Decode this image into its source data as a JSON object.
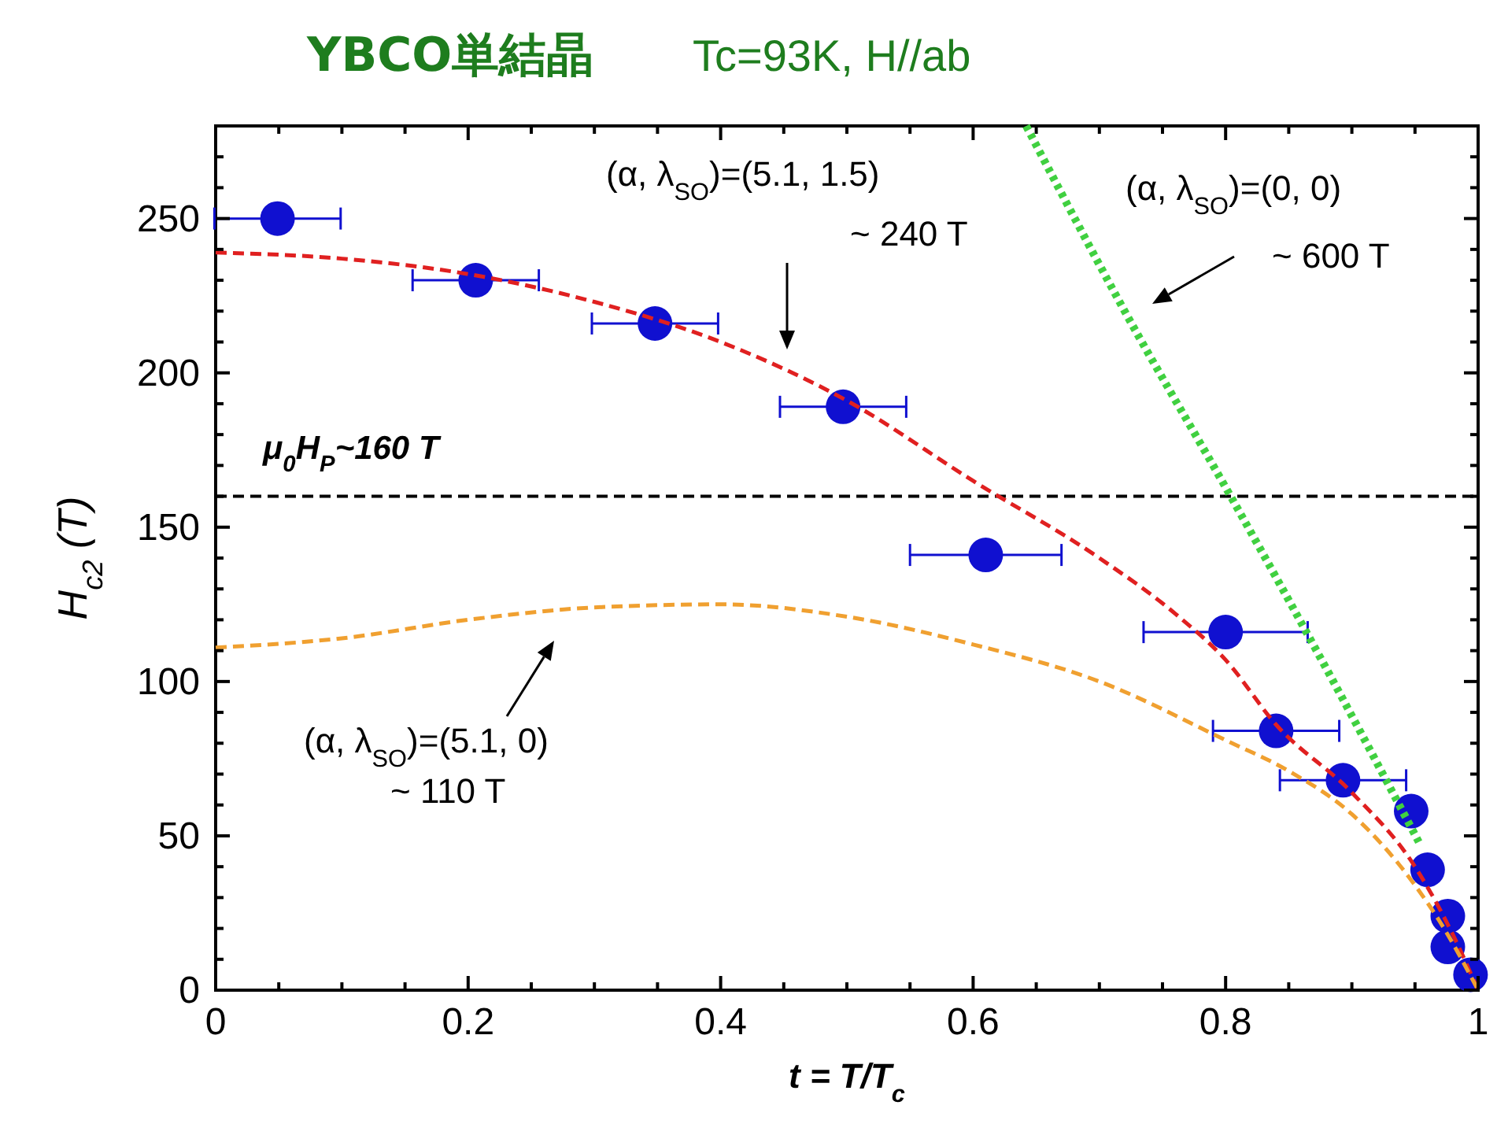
{
  "chart_data": {
    "type": "scatter",
    "title": "YBCO単結晶",
    "subtitle": "Tc=93K, H//ab",
    "xlabel": "t = T/T$_{c}$",
    "ylabel": "H$_{c2}$ (T)",
    "xlim": [
      0,
      1
    ],
    "ylim": [
      0,
      280
    ],
    "xticks": [
      0,
      {
        "value": 0.05,
        "label": null
      },
      {
        "value": 0.1,
        "label": null
      },
      {
        "value": 0.15,
        "label": null
      },
      0.2,
      {
        "value": 0.25,
        "label": null
      },
      {
        "value": 0.3,
        "label": null
      },
      {
        "value": 0.35,
        "label": null
      },
      0.4,
      {
        "value": 0.45,
        "label": null
      },
      {
        "value": 0.5,
        "label": null
      },
      {
        "value": 0.55,
        "label": null
      },
      0.6,
      {
        "value": 0.65,
        "label": null
      },
      {
        "value": 0.7,
        "label": null
      },
      {
        "value": 0.75,
        "label": null
      },
      0.8,
      {
        "value": 0.85,
        "label": null
      },
      {
        "value": 0.9,
        "label": null
      },
      {
        "value": 0.95,
        "label": null
      },
      1
    ],
    "yticks": [
      0,
      {
        "value": 10,
        "label": null
      },
      {
        "value": 20,
        "label": null
      },
      {
        "value": 30,
        "label": null
      },
      {
        "value": 40,
        "label": null
      },
      50,
      {
        "value": 60,
        "label": null
      },
      {
        "value": 70,
        "label": null
      },
      {
        "value": 80,
        "label": null
      },
      {
        "value": 90,
        "label": null
      },
      100,
      {
        "value": 110,
        "label": null
      },
      {
        "value": 120,
        "label": null
      },
      {
        "value": 130,
        "label": null
      },
      {
        "value": 140,
        "label": null
      },
      150,
      {
        "value": 160,
        "label": null
      },
      {
        "value": 170,
        "label": null
      },
      {
        "value": 180,
        "label": null
      },
      {
        "value": 190,
        "label": null
      },
      200,
      {
        "value": 210,
        "label": null
      },
      {
        "value": 220,
        "label": null
      },
      {
        "value": 230,
        "label": null
      },
      {
        "value": 240,
        "label": null
      },
      250,
      {
        "value": 260,
        "label": null
      },
      {
        "value": 270,
        "label": null
      },
      {
        "value": 280,
        "label": null
      }
    ],
    "grid": false,
    "series": [
      {
        "type": "line",
        "color": "#e02020",
        "line_style": "dashed",
        "x": [
          0,
          0.1,
          0.2,
          0.3,
          0.4,
          0.5,
          0.6,
          0.7,
          0.76,
          0.8,
          0.84,
          0.9,
          0.95,
          0.98,
          1
        ],
        "values": [
          239,
          237,
          232,
          223,
          210,
          191,
          165,
          140,
          122,
          107,
          86,
          64,
          40,
          18,
          0
        ]
      },
      {
        "type": "line",
        "color": "#f0a030",
        "line_style": "dashed",
        "x": [
          0,
          0.1,
          0.2,
          0.3,
          0.4,
          0.5,
          0.6,
          0.7,
          0.8,
          0.85,
          0.9,
          0.95,
          0.97,
          1
        ],
        "values": [
          111,
          114,
          120,
          124,
          125,
          121,
          112,
          100,
          81,
          71,
          57,
          34,
          22,
          0
        ]
      },
      {
        "type": "line",
        "color": "#40d040",
        "line_style": "dotted",
        "x": [
          0.642,
          0.72,
          0.804,
          0.88,
          0.953
        ],
        "values": [
          280,
          220,
          160,
          104,
          48
        ]
      },
      {
        "color": "#1010d0",
        "marker": "circle",
        "x": [
          0.049,
          0.206,
          0.348,
          0.497,
          0.61,
          0.8,
          0.84,
          0.893,
          0.947,
          0.96,
          0.976,
          0.976,
          0.994
        ],
        "values": [
          250,
          230,
          216,
          189,
          141,
          116,
          84,
          68,
          58,
          39,
          24,
          14,
          5
        ],
        "xerrors": [
          0.05,
          0.05,
          0.05,
          0.05,
          0.06,
          0.065,
          0.05,
          0.05,
          null,
          null,
          null,
          null,
          null
        ]
      }
    ],
    "ref_lines": [
      {
        "axis": "y",
        "value": 160,
        "label": "μ$_{0}$H$_{P}$~160 T",
        "color": "#000000",
        "line_style": "dashed"
      }
    ],
    "annotations": [
      "(α, λ$_{SO}$)=(5.1, 1.5)\n~ 240 T",
      "(α, λ$_{SO}$)=(0, 0)\n~ 600 T",
      "(α, λ$_{SO}$)=(5.1, 0)\n~ 110 T"
    ]
  }
}
